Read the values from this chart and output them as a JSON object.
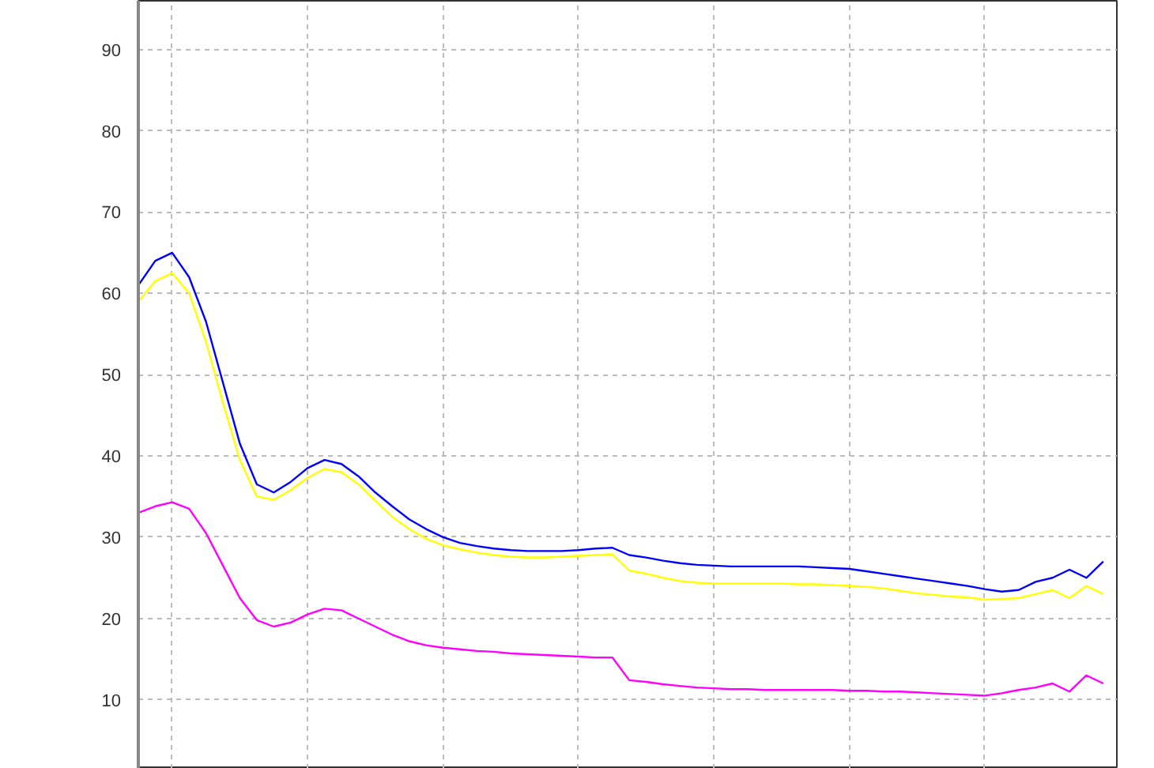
{
  "chart_data": {
    "type": "line",
    "categories": [
      null,
      null,
      null,
      null,
      null,
      null,
      null,
      null,
      null,
      null,
      null,
      null,
      null,
      null,
      null,
      null,
      null,
      null,
      null,
      null,
      null,
      null,
      null,
      null,
      null,
      null,
      null,
      null,
      null,
      null,
      null,
      null,
      null,
      null,
      null,
      null,
      null,
      null,
      null,
      null,
      null,
      null,
      null,
      null,
      null,
      null,
      null,
      null,
      null,
      null,
      null,
      null,
      null,
      null,
      null,
      null,
      null,
      null
    ],
    "ylim": [
      1.5,
      96
    ],
    "yticks": [
      10,
      20,
      30,
      40,
      50,
      60,
      70,
      80,
      90
    ],
    "grid": true,
    "marker": "none",
    "line_style": "solid",
    "series": [
      {
        "color": "#ffff00",
        "values": [
          59,
          61.5,
          62.5,
          60,
          54,
          46.5,
          39.5,
          35,
          34.6,
          35.8,
          37.3,
          38.4,
          38,
          36.5,
          34.5,
          32.5,
          31,
          29.8,
          29,
          28.5,
          28.1,
          27.8,
          27.6,
          27.5,
          27.5,
          27.6,
          27.7,
          27.8,
          27.9,
          25.9,
          25.5,
          25,
          24.6,
          24.4,
          24.3,
          24.3,
          24.3,
          24.3,
          24.3,
          24.2,
          24.2,
          24.1,
          24,
          23.9,
          23.7,
          23.4,
          23.1,
          22.9,
          22.7,
          22.6,
          22.3,
          22.4,
          22.5,
          23,
          23.5,
          22.5,
          24,
          23
        ]
      },
      {
        "color": "#0000ff",
        "values": [
          61,
          64,
          65,
          62,
          56.5,
          49,
          41.5,
          36.5,
          35.5,
          36.8,
          38.5,
          39.5,
          39,
          37.5,
          35.5,
          33.8,
          32.2,
          31,
          30,
          29.3,
          28.9,
          28.6,
          28.4,
          28.3,
          28.3,
          28.3,
          28.4,
          28.6,
          28.7,
          27.8,
          27.5,
          27.1,
          26.8,
          26.6,
          26.5,
          26.4,
          26.4,
          26.4,
          26.4,
          26.4,
          26.3,
          26.2,
          26.1,
          25.8,
          25.5,
          25.2,
          24.9,
          24.6,
          24.3,
          24,
          23.6,
          23.3,
          23.5,
          24.5,
          25,
          26,
          25,
          27
        ]
      },
      {
        "color": "#ff00ff",
        "values": [
          33,
          33.8,
          34.3,
          33.5,
          30.5,
          26.5,
          22.5,
          19.8,
          19,
          19.5,
          20.5,
          21.2,
          21,
          20,
          19,
          18,
          17.2,
          16.7,
          16.4,
          16.2,
          16,
          15.9,
          15.7,
          15.6,
          15.5,
          15.4,
          15.3,
          15.2,
          15.2,
          12.4,
          12.2,
          11.9,
          11.7,
          11.5,
          11.4,
          11.3,
          11.3,
          11.2,
          11.2,
          11.2,
          11.2,
          11.2,
          11.1,
          11.1,
          11,
          11,
          10.9,
          10.8,
          10.7,
          10.6,
          10.5,
          10.8,
          11.2,
          11.5,
          12,
          11,
          13,
          12
        ]
      }
    ]
  }
}
